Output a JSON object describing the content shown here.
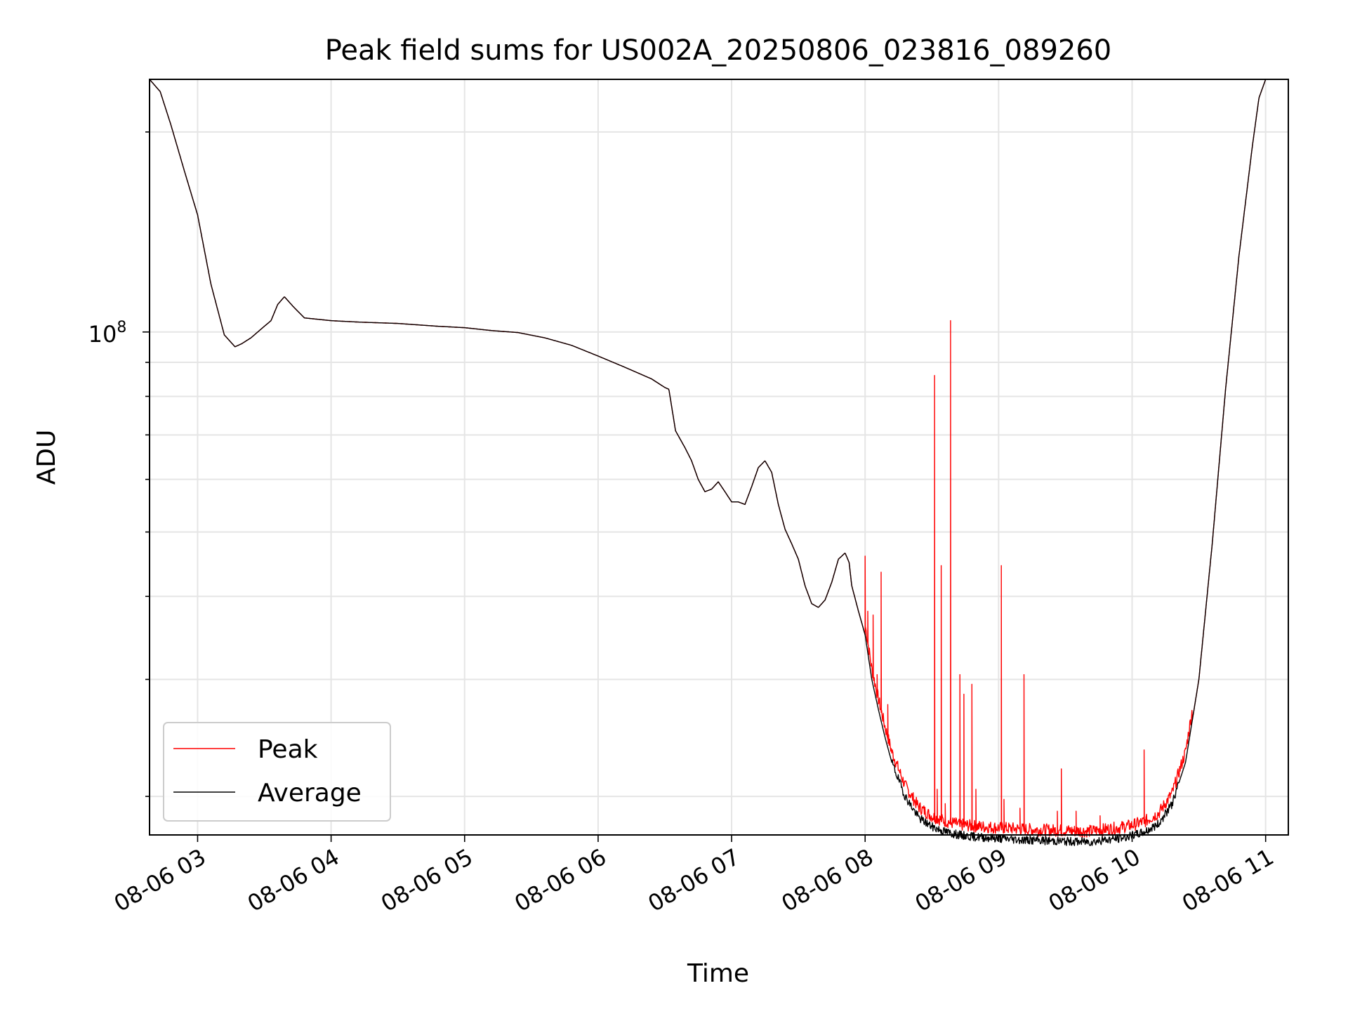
{
  "chart_data": {
    "type": "line",
    "title": "Peak field sums for US002A_20250806_023816_089260",
    "xlabel": "Time",
    "ylabel": "ADU",
    "x_ticks": [
      "08-06 03",
      "08-06 04",
      "08-06 05",
      "08-06 06",
      "08-06 07",
      "08-06 08",
      "08-06 09",
      "08-06 10",
      "08-06 11"
    ],
    "y_tick_labels": [
      {
        "base": "10",
        "exp": "8",
        "value": 100000000
      }
    ],
    "x_range_hours": [
      2.64,
      11.17
    ],
    "ylim": [
      17500000,
      240000000
    ],
    "yscale": "log",
    "grid": true,
    "legend": {
      "position": "lower-left",
      "entries": [
        "Peak",
        "Average"
      ]
    },
    "colors": {
      "Peak": "#ff0000",
      "Average": "#000000"
    },
    "series": [
      {
        "name": "Average",
        "x_hours": [
          2.64,
          2.72,
          2.8,
          2.9,
          3.0,
          3.1,
          3.2,
          3.28,
          3.33,
          3.4,
          3.5,
          3.55,
          3.6,
          3.65,
          3.72,
          3.8,
          3.9,
          4.0,
          4.2,
          4.5,
          4.8,
          5.0,
          5.2,
          5.4,
          5.6,
          5.8,
          6.0,
          6.2,
          6.4,
          6.5,
          6.53,
          6.58,
          6.65,
          6.7,
          6.75,
          6.8,
          6.85,
          6.9,
          6.95,
          7.0,
          7.05,
          7.1,
          7.15,
          7.2,
          7.25,
          7.3,
          7.35,
          7.4,
          7.45,
          7.5,
          7.55,
          7.6,
          7.65,
          7.7,
          7.75,
          7.8,
          7.85,
          7.88,
          7.9,
          7.95,
          8.0,
          8.05,
          8.1,
          8.15,
          8.2,
          8.3,
          8.4,
          8.5,
          8.6,
          8.7,
          8.8,
          8.9,
          9.0,
          9.2,
          9.4,
          9.6,
          9.7,
          9.8,
          9.9,
          10.0,
          10.1,
          10.2,
          10.3,
          10.4,
          10.5,
          10.6,
          10.7,
          10.8,
          10.9,
          10.95,
          11.0
        ],
        "y": [
          240000000,
          230000000,
          205000000,
          175000000,
          150000000,
          118000000,
          99000000,
          95000000,
          96000000,
          98000000,
          102000000,
          104000000,
          110000000,
          113000000,
          109000000,
          105000000,
          104500000,
          104000000,
          103500000,
          103000000,
          102000000,
          101500000,
          100500000,
          99800000,
          98000000,
          95500000,
          92000000,
          88500000,
          85000000,
          82500000,
          82000000,
          71000000,
          67000000,
          64000000,
          60000000,
          57500000,
          58000000,
          59500000,
          57500000,
          55500000,
          55500000,
          55000000,
          58500000,
          62500000,
          64000000,
          61500000,
          55000000,
          50500000,
          48000000,
          45500000,
          41500000,
          39000000,
          38500000,
          39500000,
          42000000,
          45500000,
          46500000,
          45000000,
          41500000,
          38000000,
          35000000,
          30000000,
          27000000,
          24500000,
          22500000,
          20000000,
          18600000,
          18000000,
          17700000,
          17500000,
          17400000,
          17350000,
          17300000,
          17200000,
          17150000,
          17100000,
          17100000,
          17200000,
          17300000,
          17450000,
          17700000,
          18200000,
          19500000,
          22500000,
          30000000,
          48000000,
          82000000,
          130000000,
          190000000,
          225000000,
          240000000
        ]
      },
      {
        "name": "Peak",
        "spikes": [
          {
            "x_hours": 8.0,
            "y": 46000000
          },
          {
            "x_hours": 8.02,
            "y": 38000000
          },
          {
            "x_hours": 8.06,
            "y": 37500000
          },
          {
            "x_hours": 8.09,
            "y": 30500000
          },
          {
            "x_hours": 8.12,
            "y": 43500000
          },
          {
            "x_hours": 8.17,
            "y": 27500000
          },
          {
            "x_hours": 8.52,
            "y": 86000000
          },
          {
            "x_hours": 8.54,
            "y": 20500000
          },
          {
            "x_hours": 8.57,
            "y": 44500000
          },
          {
            "x_hours": 8.6,
            "y": 19500000
          },
          {
            "x_hours": 8.64,
            "y": 104000000
          },
          {
            "x_hours": 8.71,
            "y": 30500000
          },
          {
            "x_hours": 8.74,
            "y": 28500000
          },
          {
            "x_hours": 8.8,
            "y": 29500000
          },
          {
            "x_hours": 8.83,
            "y": 20500000
          },
          {
            "x_hours": 9.02,
            "y": 44500000
          },
          {
            "x_hours": 9.04,
            "y": 19800000
          },
          {
            "x_hours": 9.16,
            "y": 19200000
          },
          {
            "x_hours": 9.19,
            "y": 30500000
          },
          {
            "x_hours": 9.44,
            "y": 19000000
          },
          {
            "x_hours": 9.47,
            "y": 22000000
          },
          {
            "x_hours": 9.58,
            "y": 19000000
          },
          {
            "x_hours": 9.76,
            "y": 18700000
          },
          {
            "x_hours": 10.09,
            "y": 23500000
          }
        ]
      }
    ]
  }
}
